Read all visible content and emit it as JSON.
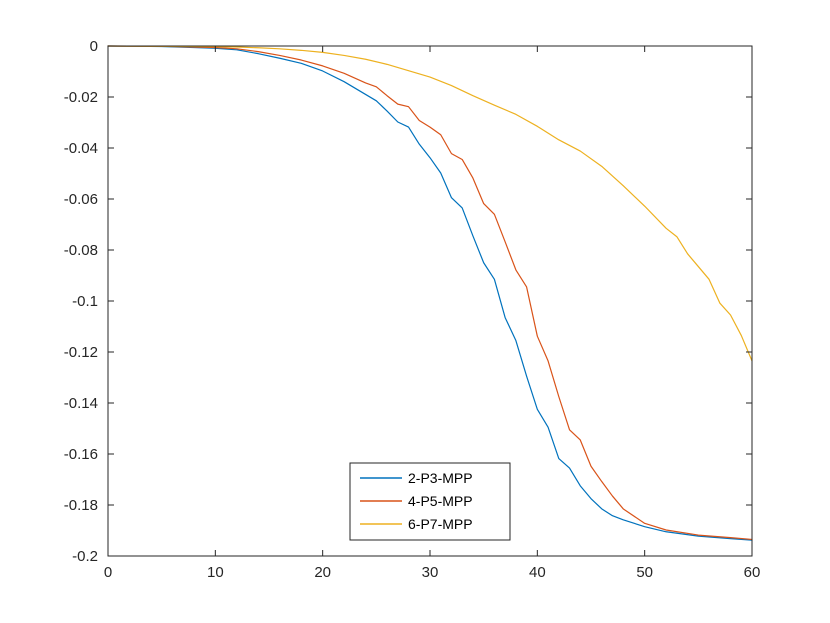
{
  "chart_data": {
    "type": "line",
    "title": "",
    "xlabel": "",
    "ylabel": "",
    "xlim": [
      0,
      60
    ],
    "ylim": [
      -0.2,
      0
    ],
    "xticks": [
      0,
      10,
      20,
      30,
      40,
      50,
      60
    ],
    "xtick_labels": [
      "0",
      "10",
      "20",
      "30",
      "40",
      "50",
      "60"
    ],
    "yticks": [
      0,
      -0.02,
      -0.04,
      -0.06,
      -0.08,
      -0.1,
      -0.12,
      -0.14,
      -0.16,
      -0.18,
      -0.2
    ],
    "ytick_labels": [
      "0",
      "-0.02",
      "-0.04",
      "-0.06",
      "-0.08",
      "-0.1",
      "-0.12",
      "-0.14",
      "-0.16",
      "-0.18",
      "-0.2"
    ],
    "grid": false,
    "legend_position": "bottom-center",
    "series": [
      {
        "name": "2-P3-MPP",
        "color": "#0072BD",
        "x": [
          0,
          5,
          8,
          10,
          12,
          14,
          16,
          18,
          20,
          22,
          24,
          25,
          26,
          27,
          28,
          29,
          30,
          31,
          32,
          33,
          34,
          35,
          36,
          37,
          38,
          39,
          40,
          41,
          42,
          43,
          44,
          45,
          46,
          47,
          48,
          50,
          52,
          55,
          58,
          60
        ],
        "y": [
          0,
          -0.0002,
          -0.0006,
          -0.0009,
          -0.0015,
          -0.003,
          -0.0048,
          -0.0068,
          -0.0098,
          -0.014,
          -0.019,
          -0.0215,
          -0.0255,
          -0.0298,
          -0.0318,
          -0.0385,
          -0.0438,
          -0.0498,
          -0.0595,
          -0.0635,
          -0.0745,
          -0.085,
          -0.0915,
          -0.1065,
          -0.1155,
          -0.1295,
          -0.1425,
          -0.1495,
          -0.1618,
          -0.1655,
          -0.1725,
          -0.1775,
          -0.1815,
          -0.1842,
          -0.1858,
          -0.1885,
          -0.1905,
          -0.1922,
          -0.1932,
          -0.1938
        ]
      },
      {
        "name": "4-P5-MPP",
        "color": "#D95319",
        "x": [
          0,
          5,
          8,
          10,
          12,
          14,
          16,
          18,
          20,
          22,
          24,
          25,
          26,
          27,
          28,
          29,
          30,
          31,
          32,
          33,
          34,
          35,
          36,
          37,
          38,
          39,
          40,
          41,
          42,
          43,
          44,
          45,
          46,
          47,
          48,
          50,
          52,
          55,
          58,
          60
        ],
        "y": [
          0,
          -0.0001,
          -0.0004,
          -0.0006,
          -0.0011,
          -0.0022,
          -0.0037,
          -0.0055,
          -0.0078,
          -0.0107,
          -0.0145,
          -0.016,
          -0.0195,
          -0.0228,
          -0.0238,
          -0.0292,
          -0.0318,
          -0.0348,
          -0.0422,
          -0.0445,
          -0.0518,
          -0.0618,
          -0.066,
          -0.0768,
          -0.0878,
          -0.0945,
          -0.1138,
          -0.1235,
          -0.1375,
          -0.1505,
          -0.1545,
          -0.1648,
          -0.1708,
          -0.1765,
          -0.1815,
          -0.1872,
          -0.1898,
          -0.1918,
          -0.1928,
          -0.1935
        ]
      },
      {
        "name": "6-P7-MPP",
        "color": "#EDB120",
        "x": [
          0,
          5,
          10,
          12,
          14,
          16,
          18,
          20,
          22,
          24,
          26,
          28,
          30,
          32,
          34,
          36,
          38,
          40,
          42,
          44,
          46,
          48,
          50,
          52,
          53,
          54,
          55,
          56,
          57,
          58,
          59,
          60
        ],
        "y": [
          0,
          -0.0001,
          -0.0002,
          -0.0004,
          -0.0007,
          -0.0011,
          -0.0017,
          -0.0025,
          -0.0037,
          -0.0052,
          -0.0072,
          -0.0097,
          -0.0122,
          -0.0155,
          -0.0195,
          -0.0232,
          -0.0268,
          -0.0315,
          -0.0368,
          -0.0412,
          -0.0472,
          -0.0548,
          -0.0628,
          -0.0715,
          -0.0748,
          -0.0815,
          -0.0865,
          -0.0915,
          -0.1008,
          -0.1055,
          -0.1135,
          -0.1235
        ]
      }
    ]
  }
}
